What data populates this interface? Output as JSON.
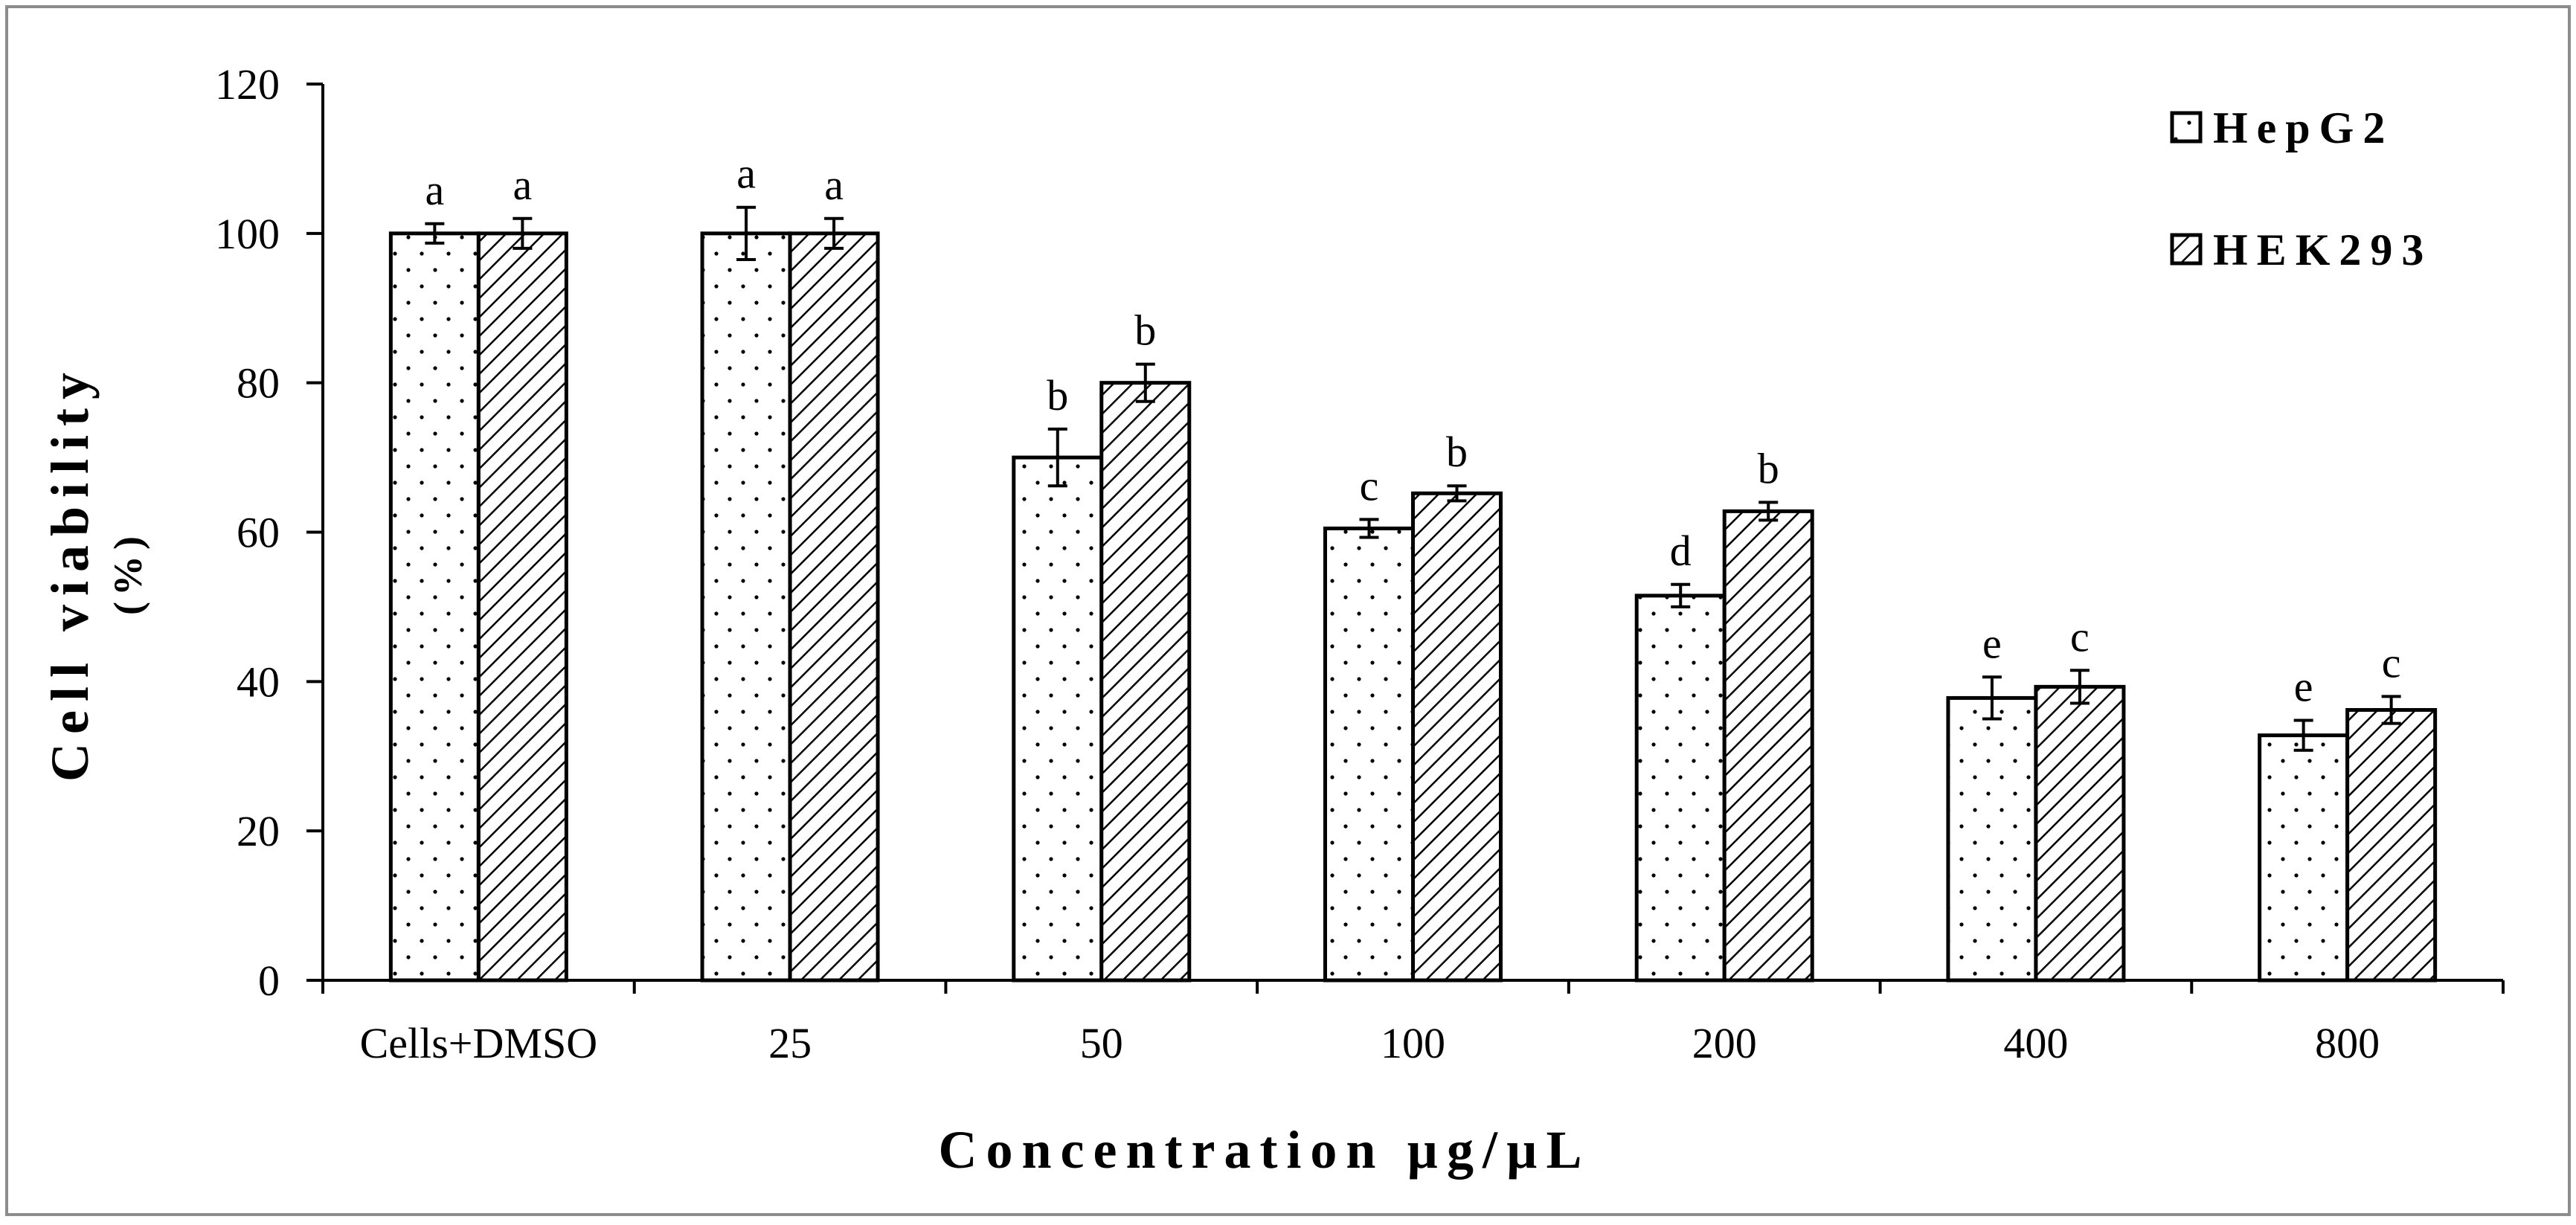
{
  "chart_data": {
    "type": "bar",
    "title": "",
    "xlabel": "Concentration µg/µL",
    "ylabel": "Cell viability",
    "ylabel_sub": "(%)",
    "ylim": [
      0,
      120
    ],
    "yticks": [
      0,
      20,
      40,
      60,
      80,
      100,
      120
    ],
    "grid": false,
    "legend_position": "top-right",
    "categories": [
      "Cells+DMSO",
      "25",
      "50",
      "100",
      "200",
      "400",
      "800"
    ],
    "series": [
      {
        "name": "HepG2",
        "pattern": "dots",
        "values": [
          100,
          100,
          70,
          60.5,
          51.5,
          37.8,
          32.8
        ],
        "errors": [
          1.3,
          3.5,
          3.8,
          1.2,
          1.5,
          2.8,
          2.0
        ],
        "significance": [
          "a",
          "a",
          "b",
          "c",
          "d",
          "e",
          "e"
        ]
      },
      {
        "name": "HEK293",
        "pattern": "hatch",
        "values": [
          100,
          100,
          80,
          65.2,
          62.8,
          39.3,
          36.2
        ],
        "errors": [
          2.0,
          2.0,
          2.5,
          1.0,
          1.2,
          2.2,
          1.8
        ],
        "significance": [
          "a",
          "a",
          "b",
          "b",
          "b",
          "c",
          "c"
        ]
      }
    ]
  }
}
